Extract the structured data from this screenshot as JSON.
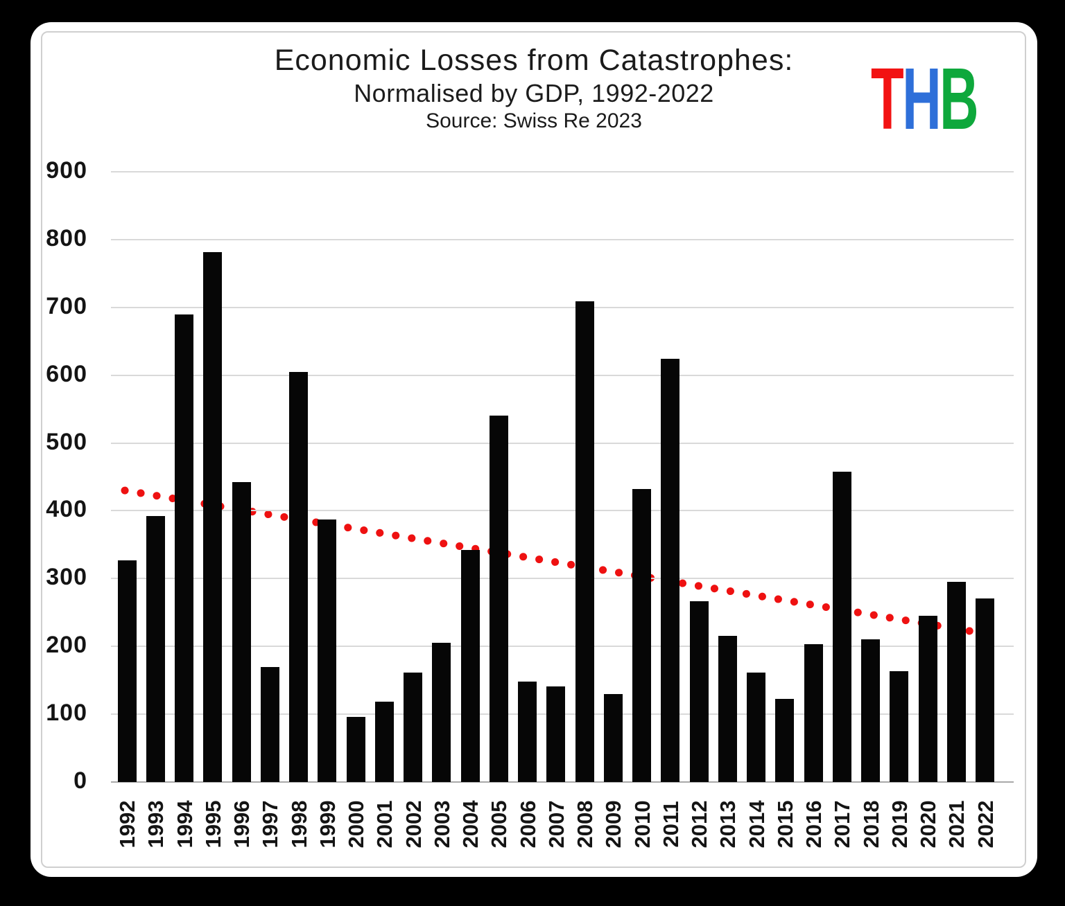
{
  "page": {
    "background_color": "#000000",
    "card_color": "#ffffff",
    "frame_color": "#cfcfcf"
  },
  "title": {
    "line1": "Economic Losses from Catastrophes:",
    "line2": "Normalised by GDP, 1992-2022",
    "line3": "Source: Swiss Re 2023"
  },
  "logo": {
    "name": "THB",
    "letters": [
      {
        "char": "T",
        "color": "#f21212"
      },
      {
        "char": "H",
        "color": "#2e6fd9"
      },
      {
        "char": "B",
        "color": "#0ea83c"
      }
    ]
  },
  "chart_data": {
    "type": "bar",
    "title": "Economic Losses from Catastrophes: Normalised by GDP, 1992-2022",
    "source": "Swiss Re 2023",
    "categories": [
      "1992",
      "1993",
      "1994",
      "1995",
      "1996",
      "1997",
      "1998",
      "1999",
      "2000",
      "2001",
      "2002",
      "2003",
      "2004",
      "2005",
      "2006",
      "2007",
      "2008",
      "2009",
      "2010",
      "2011",
      "2012",
      "2013",
      "2014",
      "2015",
      "2016",
      "2017",
      "2018",
      "2019",
      "2020",
      "2021",
      "2022"
    ],
    "values": [
      327,
      392,
      690,
      781,
      442,
      170,
      605,
      387,
      96,
      118,
      161,
      205,
      342,
      540,
      148,
      141,
      709,
      130,
      432,
      624,
      267,
      216,
      161,
      123,
      203,
      458,
      210,
      163,
      245,
      295,
      271
    ],
    "ylim": [
      0,
      900
    ],
    "ytick_step": 100,
    "yticks": [
      0,
      100,
      200,
      300,
      400,
      500,
      600,
      700,
      800,
      900
    ],
    "grid": "horizontal",
    "legend": "none",
    "bar_color": "#060606",
    "gridline_color": "#d9d9d9",
    "axis_color": "#a9a9a9",
    "trendline": {
      "style": "dotted",
      "color": "#ee1111",
      "start_category": "1992",
      "start_value": 430,
      "end_category": "2022",
      "end_value": 220
    }
  }
}
